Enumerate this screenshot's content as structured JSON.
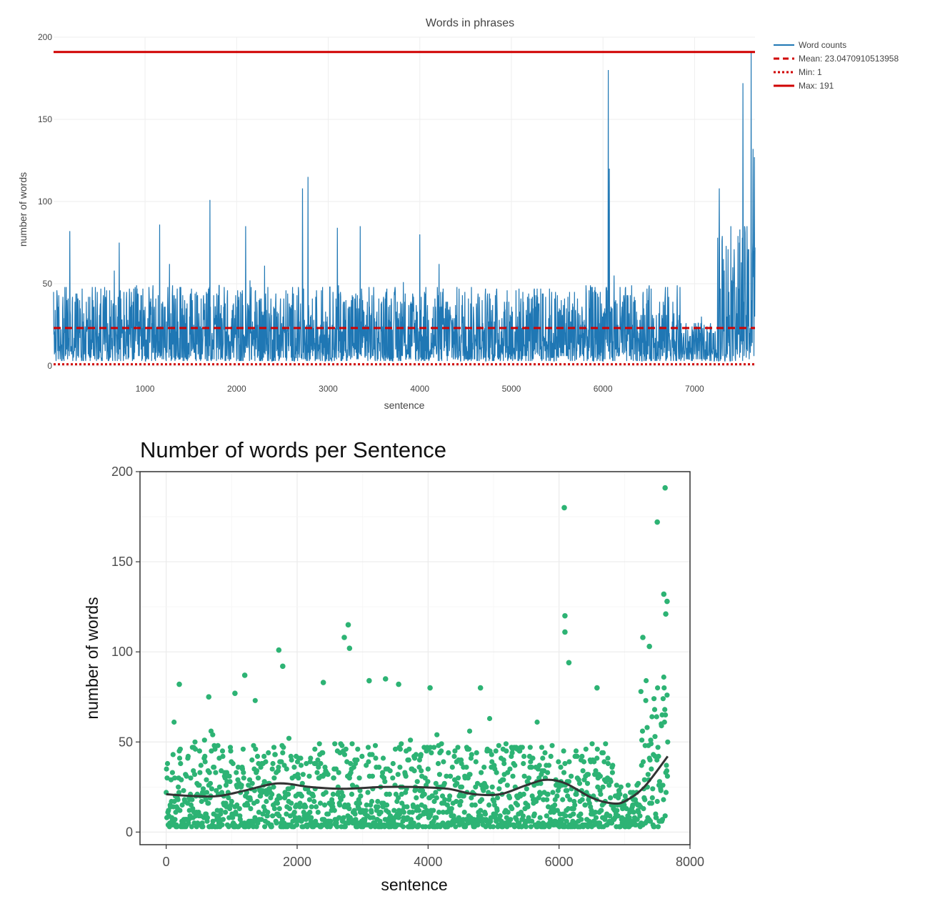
{
  "chart_data": [
    {
      "type": "line",
      "title": "Words in phrases",
      "xlabel": "sentence",
      "ylabel": "number of words",
      "xlim": [
        1,
        7660
      ],
      "ylim": [
        0,
        200
      ],
      "x_ticks": [
        1000,
        2000,
        3000,
        4000,
        5000,
        6000,
        7000
      ],
      "y_ticks": [
        0,
        50,
        100,
        150,
        200
      ],
      "grid": true,
      "legend_position": "top-right",
      "n_points": 7660,
      "colors": {
        "word_counts": "#1f77b4",
        "reference": "#d00000"
      },
      "series": [
        {
          "name": "Word counts",
          "style": "solid",
          "x_range": [
            1,
            7660
          ]
        },
        {
          "name": "Mean:  23.0470910513958",
          "style": "dashed",
          "value": 23.0470910513958
        },
        {
          "name": "Min:  1",
          "style": "dotted",
          "value": 1
        },
        {
          "name": "Max:  191",
          "style": "solid",
          "value": 191
        }
      ],
      "peaks": [
        {
          "x": 180,
          "y": 82
        },
        {
          "x": 720,
          "y": 75
        },
        {
          "x": 1160,
          "y": 86
        },
        {
          "x": 1710,
          "y": 101
        },
        {
          "x": 2100,
          "y": 85
        },
        {
          "x": 2720,
          "y": 108
        },
        {
          "x": 2780,
          "y": 115
        },
        {
          "x": 3100,
          "y": 84
        },
        {
          "x": 3350,
          "y": 85
        },
        {
          "x": 4000,
          "y": 80
        },
        {
          "x": 6060,
          "y": 180
        },
        {
          "x": 6070,
          "y": 120
        },
        {
          "x": 7270,
          "y": 108
        },
        {
          "x": 7530,
          "y": 172
        },
        {
          "x": 7620,
          "y": 191
        },
        {
          "x": 7640,
          "y": 132
        },
        {
          "x": 7655,
          "y": 127
        }
      ],
      "segments": [
        {
          "from": 0,
          "to": 6850,
          "typical_high": 40,
          "typical_low": 3
        },
        {
          "from": 6850,
          "to": 7250,
          "typical_high": 22,
          "typical_low": 3
        },
        {
          "from": 7250,
          "to": 7660,
          "typical_high": 70,
          "typical_low": 3
        }
      ]
    },
    {
      "type": "scatter",
      "title": "Number of words per Sentence",
      "xlabel": "sentence",
      "ylabel": "number of words",
      "xlim": [
        -400,
        8000
      ],
      "ylim": [
        -7,
        200
      ],
      "x_ticks": [
        "0",
        "2000",
        "4000",
        "6000",
        "8000"
      ],
      "y_ticks": [
        "0",
        "50",
        "100",
        "150",
        "200"
      ],
      "grid": true,
      "n_points": 7660,
      "colors": {
        "points": "#2db374",
        "smooth": "#333333"
      },
      "smooth_line": [
        {
          "x": 0,
          "y": 21
        },
        {
          "x": 400,
          "y": 20
        },
        {
          "x": 800,
          "y": 20
        },
        {
          "x": 1200,
          "y": 23
        },
        {
          "x": 1700,
          "y": 27
        },
        {
          "x": 2200,
          "y": 25
        },
        {
          "x": 2700,
          "y": 24
        },
        {
          "x": 3300,
          "y": 25
        },
        {
          "x": 3800,
          "y": 25
        },
        {
          "x": 4300,
          "y": 24
        },
        {
          "x": 4700,
          "y": 21
        },
        {
          "x": 5100,
          "y": 21
        },
        {
          "x": 5500,
          "y": 26
        },
        {
          "x": 5800,
          "y": 29
        },
        {
          "x": 6100,
          "y": 27
        },
        {
          "x": 6500,
          "y": 19
        },
        {
          "x": 6800,
          "y": 16
        },
        {
          "x": 7000,
          "y": 17
        },
        {
          "x": 7300,
          "y": 25
        },
        {
          "x": 7660,
          "y": 42
        }
      ],
      "outliers": [
        {
          "x": 200,
          "y": 82
        },
        {
          "x": 650,
          "y": 75
        },
        {
          "x": 1050,
          "y": 77
        },
        {
          "x": 1200,
          "y": 87
        },
        {
          "x": 1720,
          "y": 101
        },
        {
          "x": 1780,
          "y": 92
        },
        {
          "x": 2400,
          "y": 83
        },
        {
          "x": 2720,
          "y": 108
        },
        {
          "x": 2780,
          "y": 115
        },
        {
          "x": 2800,
          "y": 102
        },
        {
          "x": 3100,
          "y": 84
        },
        {
          "x": 3350,
          "y": 85
        },
        {
          "x": 3550,
          "y": 82
        },
        {
          "x": 4030,
          "y": 80
        },
        {
          "x": 4800,
          "y": 80
        },
        {
          "x": 6080,
          "y": 180
        },
        {
          "x": 6090,
          "y": 120
        },
        {
          "x": 6090,
          "y": 111
        },
        {
          "x": 6150,
          "y": 94
        },
        {
          "x": 6580,
          "y": 80
        },
        {
          "x": 7500,
          "y": 172
        },
        {
          "x": 7620,
          "y": 191
        },
        {
          "x": 7600,
          "y": 132
        },
        {
          "x": 7650,
          "y": 128
        },
        {
          "x": 7630,
          "y": 121
        },
        {
          "x": 7280,
          "y": 108
        },
        {
          "x": 7380,
          "y": 103
        }
      ]
    }
  ]
}
